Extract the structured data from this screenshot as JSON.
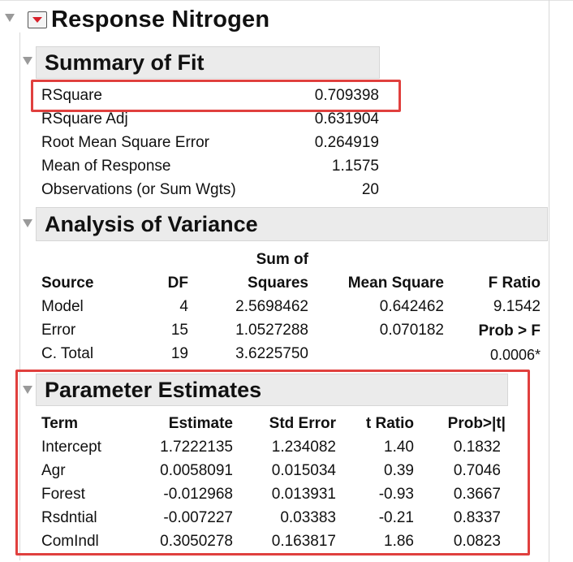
{
  "report": {
    "title": "Response Nitrogen"
  },
  "summary_of_fit": {
    "title": "Summary of Fit",
    "rows": [
      {
        "label": "RSquare",
        "value": "0.709398"
      },
      {
        "label": "RSquare Adj",
        "value": "0.631904"
      },
      {
        "label": "Root Mean Square Error",
        "value": "0.264919"
      },
      {
        "label": "Mean of Response",
        "value": "1.1575"
      },
      {
        "label": "Observations (or Sum Wgts)",
        "value": "20"
      }
    ]
  },
  "anova": {
    "title": "Analysis of Variance",
    "headers": {
      "source": "Source",
      "df": "DF",
      "ss_top": "Sum of",
      "ss": "Squares",
      "ms": "Mean Square",
      "f": "F Ratio"
    },
    "rows": [
      {
        "source": "Model",
        "df": "4",
        "ss": "2.5698462",
        "ms": "0.642462",
        "extra": "9.1542"
      },
      {
        "source": "Error",
        "df": "15",
        "ss": "1.0527288",
        "ms": "0.070182",
        "extra": "Prob > F"
      },
      {
        "source": "C. Total",
        "df": "19",
        "ss": "3.6225750",
        "ms": "",
        "extra": "0.0006*"
      }
    ]
  },
  "parameter_estimates": {
    "title": "Parameter Estimates",
    "headers": {
      "term": "Term",
      "estimate": "Estimate",
      "stderr": "Std Error",
      "t": "t Ratio",
      "p": "Prob>|t|"
    },
    "rows": [
      {
        "term": "Intercept",
        "estimate": "1.7222135",
        "stderr": "1.234082",
        "t": "1.40",
        "p": "0.1832"
      },
      {
        "term": "Agr",
        "estimate": "0.0058091",
        "stderr": "0.015034",
        "t": "0.39",
        "p": "0.7046"
      },
      {
        "term": "Forest",
        "estimate": "-0.012968",
        "stderr": "0.013931",
        "t": "-0.93",
        "p": "0.3667"
      },
      {
        "term": "Rsdntial",
        "estimate": "-0.007227",
        "stderr": "0.03383",
        "t": "-0.21",
        "p": "0.8337"
      },
      {
        "term": "ComIndl",
        "estimate": "0.3050278",
        "stderr": "0.163817",
        "t": "1.86",
        "p": "0.0823"
      }
    ]
  },
  "colors": {
    "highlight": "#e0403e",
    "menu_arrow": "#d8202a",
    "section_bg": "#ebebeb"
  }
}
